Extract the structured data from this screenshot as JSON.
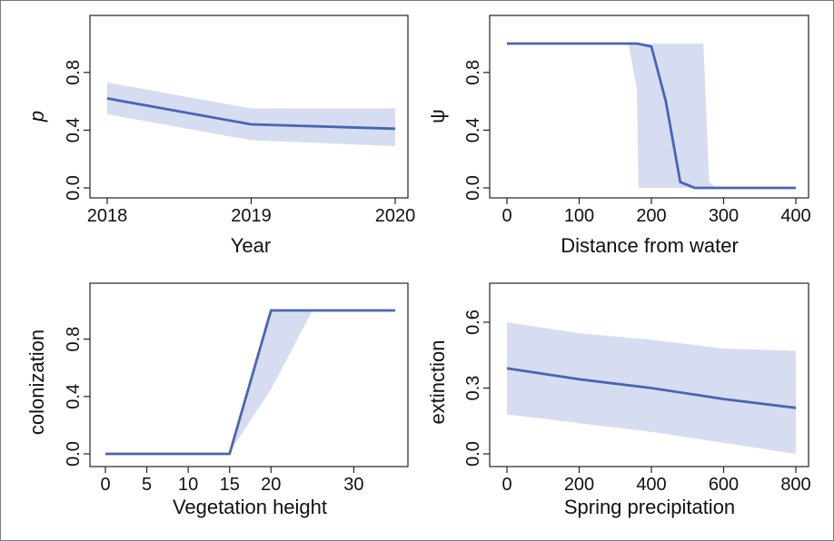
{
  "colors": {
    "line": "#4a64b4",
    "band": "#d6ddf0",
    "axis": "#222222",
    "box": "#222222",
    "frame": "#7a7a7a"
  },
  "chart_data": [
    {
      "id": "p-vs-year",
      "type": "line",
      "xlabel": "Year",
      "ylabel": "p",
      "xlim": [
        2018,
        2020
      ],
      "ylim": [
        0.0,
        1.0
      ],
      "xticks": [
        2018,
        2019,
        2020
      ],
      "xtick_labels": [
        "2018",
        "2019",
        "2020"
      ],
      "yticks": [
        0.0,
        0.4,
        0.8
      ],
      "ytick_labels": [
        "0.0",
        "0.4",
        "0.8"
      ],
      "x": [
        2018,
        2019,
        2020
      ],
      "y": [
        0.62,
        0.44,
        0.41
      ],
      "ci_lower": [
        0.51,
        0.33,
        0.29
      ],
      "ci_upper": [
        0.73,
        0.55,
        0.55
      ]
    },
    {
      "id": "psi-vs-distance",
      "type": "line",
      "xlabel": "Distance from water",
      "ylabel": "ψ",
      "xlim": [
        0,
        400
      ],
      "ylim": [
        0.0,
        1.0
      ],
      "xticks": [
        0,
        100,
        200,
        300,
        400
      ],
      "xtick_labels": [
        "0",
        "100",
        "200",
        "300",
        "400"
      ],
      "yticks": [
        0.0,
        0.4,
        0.8
      ],
      "ytick_labels": [
        "0.0",
        "0.4",
        "0.8"
      ],
      "x": [
        0,
        180,
        200,
        220,
        240,
        260,
        280,
        300,
        400
      ],
      "y": [
        1.0,
        1.0,
        0.98,
        0.6,
        0.04,
        0.0,
        0.0,
        0.0,
        0.0
      ],
      "ci_lower": [
        1.0,
        1.0,
        0.0,
        0.0,
        0.0,
        0.0,
        0.0,
        0.0,
        0.0
      ],
      "ci_upper": [
        1.0,
        1.0,
        1.0,
        1.0,
        1.0,
        1.0,
        0.03,
        0.0,
        0.0
      ],
      "band_polygon": [
        [
          168,
          1.0
        ],
        [
          180,
          0.68
        ],
        [
          182,
          0.0
        ],
        [
          290,
          0.0
        ],
        [
          280,
          0.04
        ],
        [
          272,
          1.0
        ]
      ]
    },
    {
      "id": "colonization-vs-vegetation",
      "type": "line",
      "xlabel": "Vegetation height",
      "ylabel": "colonization",
      "xlim": [
        0,
        35
      ],
      "ylim": [
        0.0,
        1.0
      ],
      "xticks": [
        0,
        5,
        10,
        15,
        20,
        30
      ],
      "xtick_labels": [
        "0",
        "5",
        "10",
        "15",
        "20",
        "30"
      ],
      "yticks": [
        0.0,
        0.4,
        0.8
      ],
      "ytick_labels": [
        "0.0",
        "0.4",
        "0.8"
      ],
      "x": [
        0,
        15,
        20,
        35
      ],
      "y": [
        0.0,
        0.0,
        1.0,
        1.0
      ],
      "band_polygon": [
        [
          15,
          0.0
        ],
        [
          20,
          1.0
        ],
        [
          25,
          1.0
        ],
        [
          20,
          0.45
        ],
        [
          16,
          0.1
        ]
      ]
    },
    {
      "id": "extinction-vs-precipitation",
      "type": "line",
      "xlabel": "Spring precipitation",
      "ylabel": "extinction",
      "xlim": [
        0,
        800
      ],
      "ylim": [
        0.0,
        0.6
      ],
      "xticks": [
        0,
        200,
        400,
        600,
        800
      ],
      "xtick_labels": [
        "0",
        "200",
        "400",
        "600",
        "800"
      ],
      "yticks": [
        0.0,
        0.3,
        0.6
      ],
      "ytick_labels": [
        "0.0",
        "0.3",
        "0.6"
      ],
      "x": [
        0,
        200,
        400,
        600,
        800
      ],
      "y": [
        0.39,
        0.34,
        0.3,
        0.25,
        0.21
      ],
      "ci_lower": [
        0.18,
        0.14,
        0.1,
        0.05,
        0.0
      ],
      "ci_upper": [
        0.6,
        0.55,
        0.52,
        0.48,
        0.47
      ]
    }
  ]
}
